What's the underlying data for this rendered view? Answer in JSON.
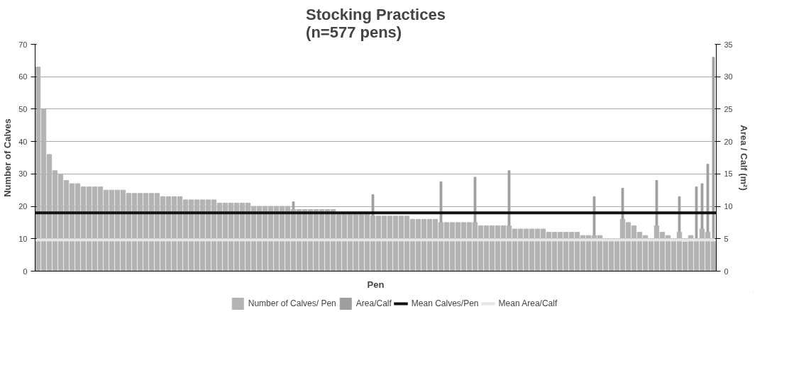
{
  "chart_data": {
    "type": "bar",
    "title": "Stocking Practices\n(n=577 pens)",
    "xlabel": "Pen",
    "ylabel": "Number of Calves",
    "y2label": "Area / Calf (m²)",
    "categories": [
      null,
      null,
      null,
      null,
      null,
      null,
      null,
      null,
      null,
      null,
      null,
      null,
      null,
      null,
      null,
      null,
      null,
      null,
      null,
      null,
      null,
      null,
      null,
      null,
      null,
      null,
      null,
      null,
      null,
      null,
      null,
      null,
      null,
      null,
      null,
      null,
      null,
      null,
      null,
      null,
      null,
      null,
      null,
      null,
      null,
      null,
      null,
      null,
      null,
      null,
      null,
      null,
      null,
      null,
      null,
      null,
      null,
      null,
      null,
      null,
      null,
      null,
      null,
      null,
      null,
      null,
      null,
      null,
      null,
      null,
      null,
      null,
      null,
      null,
      null,
      null,
      null,
      null,
      null,
      null,
      null,
      null,
      null,
      null,
      null,
      null,
      null,
      null,
      null,
      null,
      null,
      null,
      null,
      null,
      null,
      null,
      null,
      null,
      null,
      null,
      null,
      null,
      null,
      null,
      null,
      null,
      null,
      null,
      null,
      null,
      null,
      null,
      null,
      null,
      null,
      null,
      null,
      null,
      null,
      null
    ],
    "series": [
      {
        "name": "Number of Calves/ Pen",
        "color": "#b3b3b3",
        "values": [
          63,
          50,
          36,
          31,
          30,
          28,
          27,
          27,
          26,
          26,
          26,
          26,
          25,
          25,
          25,
          25,
          24,
          24,
          24,
          24,
          24,
          24,
          23,
          23,
          23,
          23,
          22,
          22,
          22,
          22,
          22,
          22,
          21,
          21,
          21,
          21,
          21,
          21,
          20,
          20,
          20,
          20,
          20,
          20,
          20,
          19,
          19,
          19,
          19,
          19,
          19,
          19,
          19,
          18,
          18,
          18,
          18,
          18,
          18,
          17,
          17,
          17,
          17,
          17,
          17,
          17,
          16,
          16,
          16,
          16,
          16,
          15,
          15,
          15,
          15,
          15,
          15,
          15,
          14,
          14,
          14,
          14,
          14,
          14,
          13,
          13,
          13,
          13,
          13,
          13,
          12,
          12,
          12,
          12,
          12,
          12,
          11,
          11,
          11,
          11,
          10,
          10,
          10,
          16,
          15,
          14,
          12,
          11,
          10,
          14,
          12,
          11,
          10,
          12,
          9,
          11,
          10,
          13,
          12,
          10
        ]
      },
      {
        "name": "Area/Calf",
        "color": "#9e9e9e",
        "axis": "y2",
        "values": [
          null,
          null,
          null,
          null,
          null,
          null,
          null,
          null,
          null,
          null,
          null,
          null,
          null,
          null,
          null,
          null,
          null,
          null,
          null,
          null,
          null,
          null,
          null,
          null,
          null,
          null,
          null,
          null,
          null,
          null,
          null,
          null,
          null,
          null,
          null,
          null,
          null,
          null,
          null,
          null,
          null,
          null,
          null,
          null,
          null,
          10.7,
          null,
          null,
          null,
          null,
          null,
          null,
          null,
          null,
          null,
          null,
          null,
          null,
          null,
          11.8,
          null,
          null,
          null,
          null,
          null,
          null,
          null,
          null,
          null,
          null,
          null,
          13.8,
          null,
          null,
          null,
          null,
          null,
          14.5,
          null,
          null,
          null,
          null,
          null,
          15.5,
          null,
          null,
          null,
          null,
          null,
          null,
          null,
          null,
          null,
          null,
          null,
          null,
          null,
          null,
          11.5,
          null,
          null,
          null,
          null,
          12.8,
          null,
          null,
          null,
          null,
          null,
          14,
          null,
          null,
          null,
          11.5,
          null,
          null,
          13,
          13.5,
          16.5,
          33
        ]
      }
    ],
    "ref_lines": [
      {
        "axis": "y",
        "value": 18,
        "label": "Mean Calves/Pen",
        "color": "#111111"
      },
      {
        "axis": "y2",
        "value": 4.8,
        "label": "Mean Area/Calf",
        "color": "#e6e6e6"
      }
    ],
    "ylim": [
      0,
      70
    ],
    "yticks": [
      0,
      10,
      20,
      30,
      40,
      50,
      60,
      70
    ],
    "y2lim": [
      0,
      35
    ],
    "y2ticks": [
      0,
      5,
      10,
      15,
      20,
      25,
      30,
      35
    ],
    "grid": "y",
    "legend": "bottom"
  }
}
